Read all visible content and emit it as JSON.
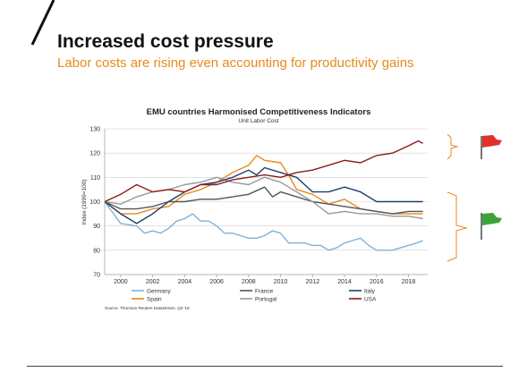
{
  "slide": {
    "title": "Increased cost pressure",
    "subtitle": "Labor costs are rising even accounting for productivity gains"
  },
  "colors": {
    "accent_orange": "#e8891c",
    "flag_red": "#e0312f",
    "flag_green": "#3aa33a"
  },
  "icons": {
    "top_flag": "red-flag-icon",
    "bottom_flag": "green-flag-icon"
  },
  "chart_data": {
    "type": "line",
    "title": "EMU countries Harmonised Competitiveness Indicators",
    "subtitle": "Unit Labor Cost",
    "ylabel": "Index (1999=100)",
    "xlabel": "",
    "xlim": [
      1999.0,
      2019.2
    ],
    "ylim": [
      70,
      130
    ],
    "y_ticks": [
      "70",
      "80",
      "90",
      "100",
      "110",
      "120",
      "130"
    ],
    "x_ticks": [
      "2000",
      "2002",
      "2004",
      "2006",
      "2008",
      "2010",
      "2012",
      "2014",
      "2016",
      "2018"
    ],
    "grid": "horizontal",
    "source": "Source: Thomson Reuters Datastream, Q3 '18",
    "legend_position": "bottom",
    "series": [
      {
        "name": "Germany",
        "color": "#7fb3d9",
        "points": [
          [
            1999,
            100
          ],
          [
            2000,
            91
          ],
          [
            2001,
            90
          ],
          [
            2001.5,
            87
          ],
          [
            2002,
            88
          ],
          [
            2002.5,
            87
          ],
          [
            2003,
            89
          ],
          [
            2003.5,
            92
          ],
          [
            2004,
            93
          ],
          [
            2004.5,
            95
          ],
          [
            2005,
            92
          ],
          [
            2005.5,
            92
          ],
          [
            2006,
            90
          ],
          [
            2006.5,
            87
          ],
          [
            2007,
            87
          ],
          [
            2007.5,
            86
          ],
          [
            2008,
            85
          ],
          [
            2008.5,
            85
          ],
          [
            2009,
            86
          ],
          [
            2009.5,
            88
          ],
          [
            2010,
            87
          ],
          [
            2010.5,
            83
          ],
          [
            2011,
            83
          ],
          [
            2011.5,
            83
          ],
          [
            2012,
            82
          ],
          [
            2012.5,
            82
          ],
          [
            2013,
            80
          ],
          [
            2013.5,
            81
          ],
          [
            2014,
            83
          ],
          [
            2014.5,
            84
          ],
          [
            2015,
            85
          ],
          [
            2015.5,
            82
          ],
          [
            2016,
            80
          ],
          [
            2016.5,
            80
          ],
          [
            2017,
            80
          ],
          [
            2017.5,
            81
          ],
          [
            2018,
            82
          ],
          [
            2018.5,
            83
          ],
          [
            2018.9,
            84
          ]
        ]
      },
      {
        "name": "Spain",
        "color": "#e8891c",
        "points": [
          [
            1999,
            100
          ],
          [
            2000,
            95
          ],
          [
            2001,
            95
          ],
          [
            2002,
            97
          ],
          [
            2003,
            98
          ],
          [
            2004,
            103
          ],
          [
            2005,
            105
          ],
          [
            2006,
            108
          ],
          [
            2007,
            112
          ],
          [
            2008,
            115
          ],
          [
            2008.5,
            119
          ],
          [
            2009,
            117
          ],
          [
            2010,
            116
          ],
          [
            2010.5,
            111
          ],
          [
            2011,
            105
          ],
          [
            2012,
            103
          ],
          [
            2013,
            99
          ],
          [
            2014,
            101
          ],
          [
            2015,
            97
          ],
          [
            2016,
            96
          ],
          [
            2017,
            95
          ],
          [
            2018,
            95
          ],
          [
            2018.9,
            95
          ]
        ]
      },
      {
        "name": "France",
        "color": "#555555",
        "points": [
          [
            1999,
            100
          ],
          [
            2000,
            97
          ],
          [
            2001,
            97
          ],
          [
            2002,
            98
          ],
          [
            2003,
            100
          ],
          [
            2004,
            100
          ],
          [
            2005,
            101
          ],
          [
            2006,
            101
          ],
          [
            2007,
            102
          ],
          [
            2008,
            103
          ],
          [
            2009,
            106
          ],
          [
            2009.5,
            102
          ],
          [
            2010,
            104
          ],
          [
            2011,
            102
          ],
          [
            2012,
            100
          ],
          [
            2013,
            99
          ],
          [
            2014,
            98
          ],
          [
            2015,
            97
          ],
          [
            2016,
            96
          ],
          [
            2017,
            95
          ],
          [
            2018,
            96
          ],
          [
            2018.9,
            96
          ]
        ]
      },
      {
        "name": "Portugal",
        "color": "#999999",
        "points": [
          [
            1999,
            100
          ],
          [
            2000,
            99
          ],
          [
            2001,
            102
          ],
          [
            2002,
            104
          ],
          [
            2003,
            105
          ],
          [
            2004,
            107
          ],
          [
            2005,
            108
          ],
          [
            2006,
            110
          ],
          [
            2007,
            108
          ],
          [
            2008,
            107
          ],
          [
            2009,
            110
          ],
          [
            2010,
            108
          ],
          [
            2011,
            104
          ],
          [
            2012,
            100
          ],
          [
            2013,
            95
          ],
          [
            2014,
            96
          ],
          [
            2015,
            95
          ],
          [
            2016,
            95
          ],
          [
            2017,
            94
          ],
          [
            2018,
            94
          ],
          [
            2018.9,
            93
          ]
        ]
      },
      {
        "name": "Italy",
        "color": "#1f3f6e",
        "points": [
          [
            1999,
            100
          ],
          [
            2000,
            95
          ],
          [
            2001,
            91
          ],
          [
            2002,
            95
          ],
          [
            2003,
            100
          ],
          [
            2004,
            104
          ],
          [
            2005,
            107
          ],
          [
            2006,
            108
          ],
          [
            2007,
            110
          ],
          [
            2008,
            113
          ],
          [
            2008.5,
            111
          ],
          [
            2009,
            114
          ],
          [
            2010,
            112
          ],
          [
            2011,
            110
          ],
          [
            2012,
            104
          ],
          [
            2013,
            104
          ],
          [
            2014,
            106
          ],
          [
            2015,
            104
          ],
          [
            2016,
            100
          ],
          [
            2017,
            100
          ],
          [
            2018,
            100
          ],
          [
            2018.9,
            100
          ]
        ]
      },
      {
        "name": "USA",
        "color": "#8b1a1a",
        "points": [
          [
            1999,
            100
          ],
          [
            2000,
            103
          ],
          [
            2001,
            107
          ],
          [
            2002,
            104
          ],
          [
            2003,
            105
          ],
          [
            2004,
            104
          ],
          [
            2005,
            107
          ],
          [
            2006,
            107
          ],
          [
            2007,
            109
          ],
          [
            2008,
            110
          ],
          [
            2009,
            111
          ],
          [
            2010,
            110
          ],
          [
            2011,
            112
          ],
          [
            2012,
            113
          ],
          [
            2013,
            115
          ],
          [
            2014,
            117
          ],
          [
            2015,
            116
          ],
          [
            2016,
            119
          ],
          [
            2017,
            120
          ],
          [
            2018,
            123
          ],
          [
            2018.6,
            125
          ],
          [
            2018.9,
            124
          ]
        ]
      }
    ]
  }
}
